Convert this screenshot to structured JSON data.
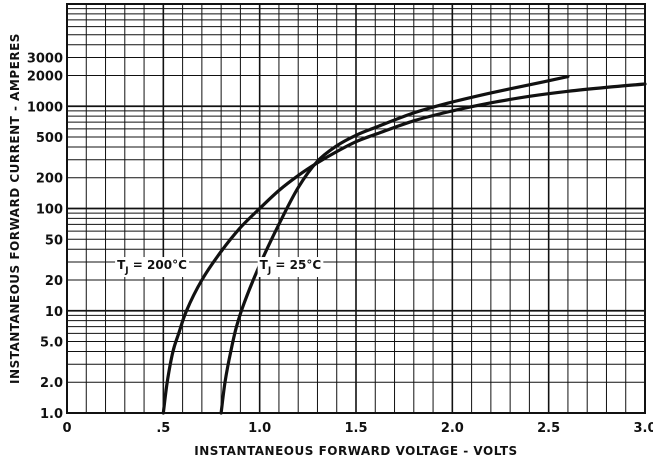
{
  "chart_data": {
    "type": "line",
    "title": "",
    "xlabel": "INSTANTANEOUS FORWARD VOLTAGE - VOLTS",
    "ylabel": "INSTANTANEOUS FORWARD CURRENT - AMPERES",
    "xlim": [
      0,
      3.0
    ],
    "ylim": [
      1.0,
      10000
    ],
    "y_scale": "log",
    "grid": true,
    "x_ticks": [
      {
        "value": 0,
        "label": "0"
      },
      {
        "value": 0.5,
        "label": ".5"
      },
      {
        "value": 1.0,
        "label": "1.0"
      },
      {
        "value": 1.5,
        "label": "1.5"
      },
      {
        "value": 2.0,
        "label": "2.0"
      },
      {
        "value": 2.5,
        "label": "2.5"
      },
      {
        "value": 3.0,
        "label": "3.0"
      }
    ],
    "y_ticks": [
      {
        "value": 1.0,
        "label": "1.0"
      },
      {
        "value": 2.0,
        "label": "2.0"
      },
      {
        "value": 5.0,
        "label": "5.0"
      },
      {
        "value": 10,
        "label": "10"
      },
      {
        "value": 20,
        "label": "20"
      },
      {
        "value": 50,
        "label": "50"
      },
      {
        "value": 100,
        "label": "100"
      },
      {
        "value": 200,
        "label": "200"
      },
      {
        "value": 500,
        "label": "500"
      },
      {
        "value": 1000,
        "label": "1000"
      },
      {
        "value": 2000,
        "label": "2000"
      },
      {
        "value": 3000,
        "label": "3000"
      }
    ],
    "series": [
      {
        "name": "T_J = 200°C",
        "label_main": "T",
        "label_sub": "J",
        "label_rest": " = 200°C",
        "label_at": {
          "x": 0.26,
          "y": 28
        },
        "points": [
          [
            0.5,
            1.0
          ],
          [
            0.52,
            2.0
          ],
          [
            0.55,
            4.0
          ],
          [
            0.58,
            6.0
          ],
          [
            0.62,
            10
          ],
          [
            0.7,
            20
          ],
          [
            0.8,
            38
          ],
          [
            0.9,
            65
          ],
          [
            1.0,
            100
          ],
          [
            1.1,
            150
          ],
          [
            1.2,
            210
          ],
          [
            1.3,
            280
          ],
          [
            1.4,
            360
          ],
          [
            1.5,
            450
          ],
          [
            1.6,
            530
          ],
          [
            1.8,
            720
          ],
          [
            2.0,
            900
          ],
          [
            2.2,
            1080
          ],
          [
            2.4,
            1250
          ],
          [
            2.6,
            1400
          ],
          [
            2.8,
            1530
          ],
          [
            3.0,
            1650
          ]
        ]
      },
      {
        "name": "T_J = 25°C",
        "label_main": "T",
        "label_sub": "J",
        "label_rest": " = 25°C",
        "label_at": {
          "x": 1.0,
          "y": 28
        },
        "points": [
          [
            0.8,
            1.0
          ],
          [
            0.82,
            2.0
          ],
          [
            0.85,
            4.0
          ],
          [
            0.88,
            7.0
          ],
          [
            0.92,
            12
          ],
          [
            1.0,
            28
          ],
          [
            1.1,
            70
          ],
          [
            1.2,
            160
          ],
          [
            1.3,
            290
          ],
          [
            1.4,
            410
          ],
          [
            1.5,
            520
          ],
          [
            1.6,
            620
          ],
          [
            1.8,
            860
          ],
          [
            2.0,
            1100
          ],
          [
            2.2,
            1350
          ],
          [
            2.4,
            1620
          ],
          [
            2.6,
            1950
          ]
        ]
      }
    ]
  }
}
